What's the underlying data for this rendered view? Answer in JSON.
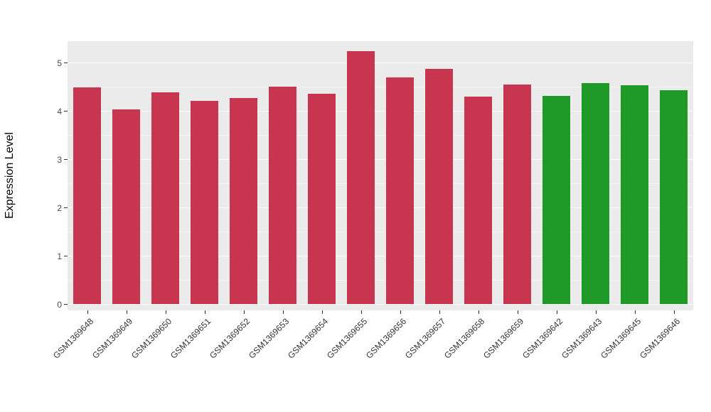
{
  "chart_data": {
    "type": "bar",
    "title": "",
    "xlabel": "",
    "ylabel": "Expression Level",
    "ylim": [
      0,
      5.45
    ],
    "yticks": [
      0,
      1,
      2,
      3,
      4,
      5
    ],
    "grid": "on",
    "legend_position": "none",
    "panel_background": "#EBEBEB",
    "gridline_color": "#FFFFFF",
    "categories": [
      "GSM1369648",
      "GSM1369649",
      "GSM1369650",
      "GSM1369651",
      "GSM1369652",
      "GSM1369653",
      "GSM1369654",
      "GSM1369655",
      "GSM1369656",
      "GSM1369657",
      "GSM1369658",
      "GSM1369659",
      "GSM1369642",
      "GSM1369643",
      "GSM1369645",
      "GSM1369646"
    ],
    "values": [
      4.49,
      4.03,
      4.38,
      4.21,
      4.26,
      4.5,
      4.36,
      5.23,
      4.69,
      4.87,
      4.3,
      4.55,
      4.31,
      4.58,
      4.53,
      4.43
    ],
    "bar_colors": [
      "#C8354F",
      "#C8354F",
      "#C8354F",
      "#C8354F",
      "#C8354F",
      "#C8354F",
      "#C8354F",
      "#C8354F",
      "#C8354F",
      "#C8354F",
      "#C8354F",
      "#C8354F",
      "#1F9927",
      "#1F9927",
      "#1F9927",
      "#1F9927"
    ],
    "group_colors": {
      "red_group": "#C8354F",
      "green_group": "#1F9927"
    }
  }
}
